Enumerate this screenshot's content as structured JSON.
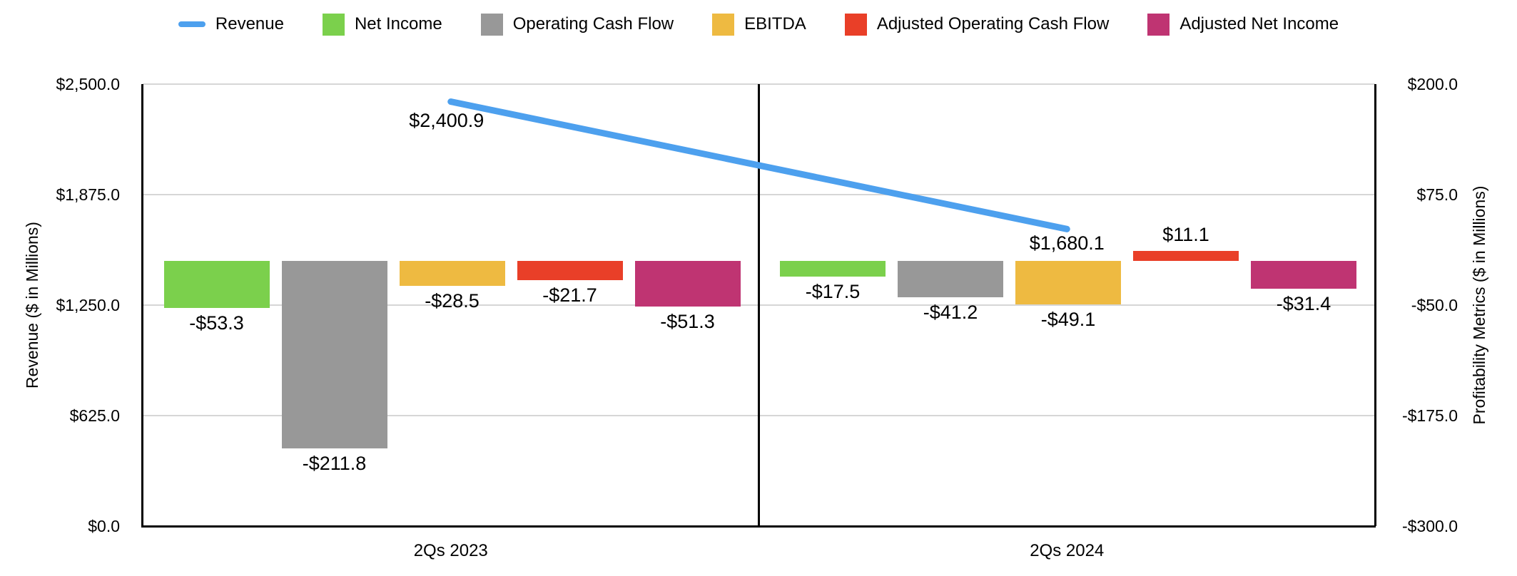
{
  "chart_data": {
    "type": "combo_bar_line",
    "categories": [
      "2Qs 2023",
      "2Qs 2024"
    ],
    "line_series": {
      "name": "Revenue",
      "axis": "left",
      "color": "#4DA0EE",
      "values": [
        2400.9,
        1680.1
      ],
      "labels": [
        "$2,400.9",
        "$1,680.1"
      ]
    },
    "bar_series": [
      {
        "name": "Net Income",
        "axis": "right",
        "color": "#7BD04C",
        "values": [
          -53.3,
          -17.5
        ],
        "labels": [
          "-$53.3",
          "-$17.5"
        ]
      },
      {
        "name": "Operating Cash Flow",
        "axis": "right",
        "color": "#989898",
        "values": [
          -211.8,
          -41.2
        ],
        "labels": [
          "-$211.8",
          "-$41.2"
        ]
      },
      {
        "name": "EBITDA",
        "axis": "right",
        "color": "#EEBA41",
        "values": [
          -28.5,
          -49.1
        ],
        "labels": [
          "-$28.5",
          "-$49.1"
        ]
      },
      {
        "name": "Adjusted Operating Cash Flow",
        "axis": "right",
        "color": "#E93F28",
        "values": [
          -21.7,
          11.1
        ],
        "labels": [
          "-$21.7",
          "$11.1"
        ]
      },
      {
        "name": "Adjusted Net Income",
        "axis": "right",
        "color": "#BF3472",
        "values": [
          -51.3,
          -31.4
        ],
        "labels": [
          "-$51.3",
          "-$31.4"
        ]
      }
    ],
    "left_axis": {
      "title": "Revenue ($ in Millions)",
      "min": 0,
      "max": 2500,
      "ticks": [
        {
          "value": 2500,
          "label": "$2,500.0"
        },
        {
          "value": 1875,
          "label": "$1,875.0"
        },
        {
          "value": 1250,
          "label": "$1,250.0"
        },
        {
          "value": 625,
          "label": "$625.0"
        },
        {
          "value": 0,
          "label": "$0.0"
        }
      ]
    },
    "right_axis": {
      "title": "Profitability Metrics ($ in Millions)",
      "min": -300,
      "max": 200,
      "ticks": [
        {
          "value": 200,
          "label": "$200.0"
        },
        {
          "value": 75,
          "label": "$75.0"
        },
        {
          "value": -50,
          "label": "-$50.0"
        },
        {
          "value": -175,
          "label": "-$175.0"
        },
        {
          "value": -300,
          "label": "-$300.0"
        }
      ]
    },
    "grid": true,
    "legend_position": "top"
  }
}
